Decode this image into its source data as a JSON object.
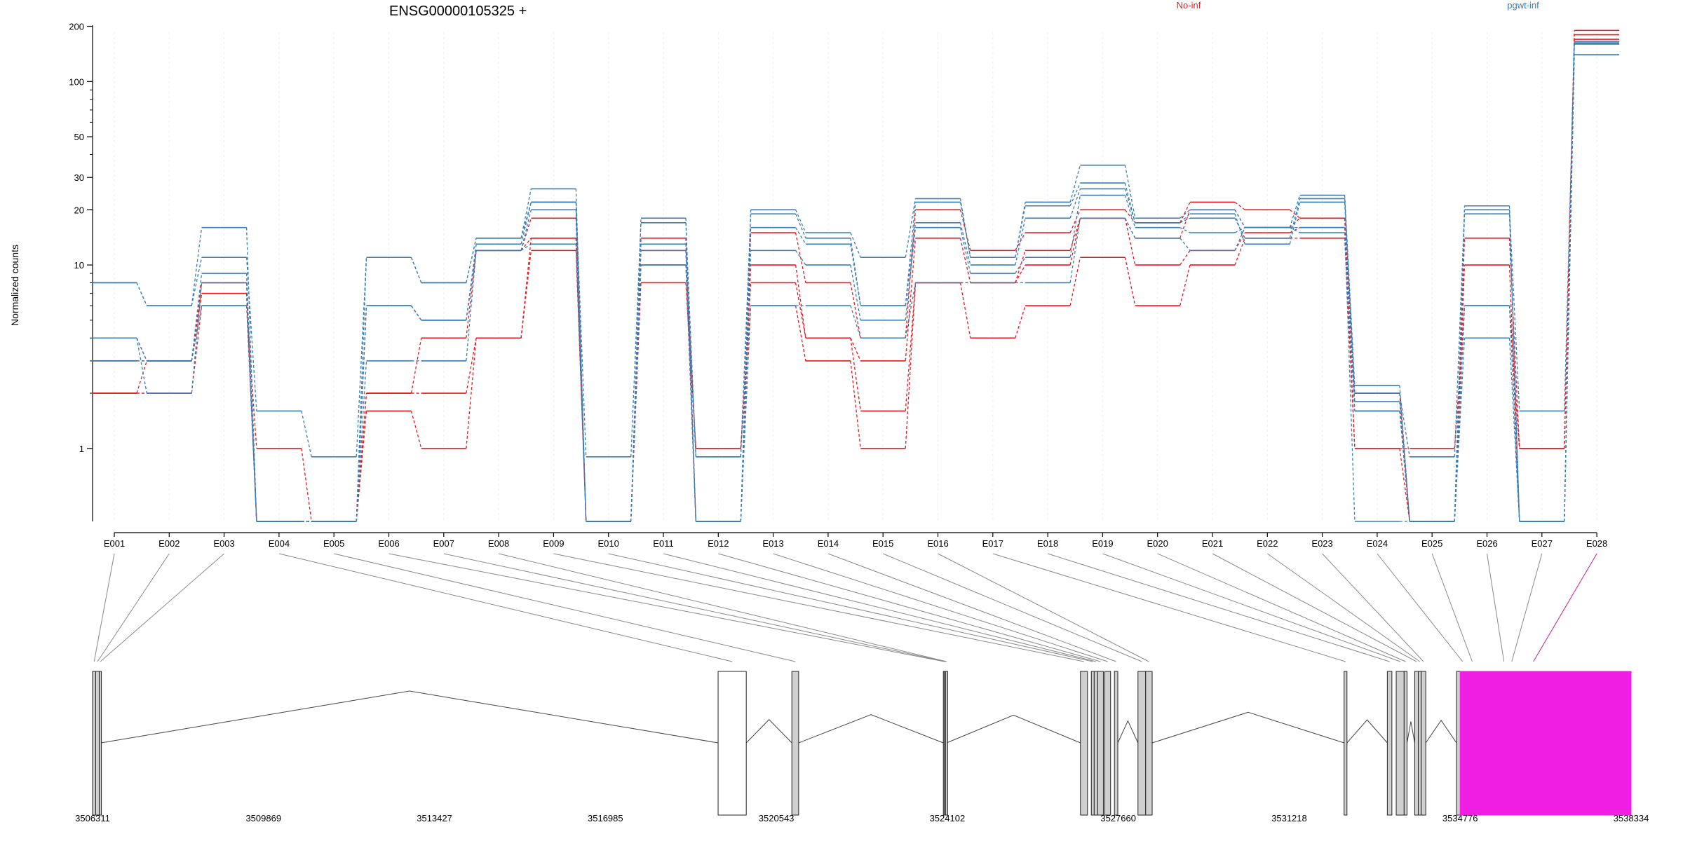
{
  "chart_data": {
    "type": "line",
    "title": "ENSG00000105325 +",
    "ylabel": "Normalized counts",
    "yscale": "log",
    "ylim": [
      0.4,
      210
    ],
    "yticks": [
      1,
      10,
      20,
      30,
      50,
      100,
      200
    ],
    "legend": {
      "placement": "top",
      "entries": [
        "No-inf",
        "pgwt-inf"
      ]
    },
    "colors": {
      "No-inf": "#e8191c",
      "pgwt-inf": "#377eb8",
      "highlight": "#f01ee3",
      "gene_box": "#d0d0d0",
      "connector": "#888888"
    },
    "categories": [
      "E001",
      "E002",
      "E003",
      "E004",
      "E005",
      "E006",
      "E007",
      "E008",
      "E009",
      "E010",
      "E011",
      "E012",
      "E013",
      "E014",
      "E015",
      "E016",
      "E017",
      "E018",
      "E019",
      "E020",
      "E021",
      "E022",
      "E023",
      "E024",
      "E025",
      "E026",
      "E027",
      "E028"
    ],
    "series": [
      {
        "group": "No-inf",
        "values": [
          2,
          2,
          6,
          1,
          0.4,
          1.6,
          1,
          4,
          12,
          0.4,
          8,
          1,
          6,
          3,
          1,
          8,
          4,
          6,
          11,
          6,
          10,
          14,
          14,
          1,
          1,
          6,
          1,
          165
        ]
      },
      {
        "group": "No-inf",
        "values": [
          2,
          3,
          7,
          0.4,
          0.4,
          2,
          2,
          4,
          14,
          0.4,
          10,
          1,
          8,
          4,
          1.6,
          8,
          8,
          10,
          18,
          10,
          12,
          15,
          16,
          1.6,
          0.4,
          6,
          1,
          170
        ]
      },
      {
        "group": "No-inf",
        "values": [
          3,
          3,
          7,
          0.4,
          0.4,
          2,
          4,
          12,
          18,
          0.4,
          12,
          0.4,
          10,
          4,
          3,
          14,
          8,
          12,
          18,
          14,
          20,
          16,
          18,
          2,
          0.4,
          10,
          0.4,
          180
        ]
      },
      {
        "group": "No-inf",
        "values": [
          4,
          3,
          8,
          0.4,
          0.4,
          6,
          5,
          12,
          14,
          0.4,
          14,
          0.4,
          15,
          8,
          4,
          20,
          12,
          15,
          20,
          17,
          22,
          20,
          18,
          1,
          0.4,
          14,
          1,
          190
        ]
      },
      {
        "group": "pgwt-inf",
        "values": [
          3,
          3,
          6,
          0.4,
          0.4,
          3,
          3,
          12,
          13,
          0.4,
          10,
          0.4,
          6,
          6,
          4,
          8,
          8,
          8,
          18,
          14,
          12,
          16,
          16,
          0.4,
          0.4,
          4,
          0.4,
          140
        ]
      },
      {
        "group": "pgwt-inf",
        "values": [
          4,
          2,
          8,
          0.4,
          0.4,
          6,
          5,
          12,
          20,
          0.4,
          12,
          0.4,
          12,
          10,
          5,
          16,
          9,
          11,
          24,
          16,
          15,
          16,
          15,
          1.6,
          0.4,
          6,
          0.4,
          160
        ]
      },
      {
        "group": "pgwt-inf",
        "values": [
          4,
          3,
          9,
          0.4,
          0.4,
          6,
          5,
          13,
          22,
          0.4,
          13,
          0.9,
          16,
          13,
          6,
          17,
          10,
          18,
          26,
          17,
          19,
          13,
          22,
          1.8,
          0.4,
          19,
          0.4,
          165
        ]
      },
      {
        "group": "pgwt-inf",
        "values": [
          8,
          6,
          11,
          1.6,
          0.9,
          11,
          8,
          14,
          22,
          0.9,
          17,
          0.9,
          19,
          14,
          6,
          22,
          11,
          21,
          28,
          17,
          18,
          14,
          23,
          2,
          0.9,
          20,
          1.6,
          165
        ]
      },
      {
        "group": "pgwt-inf",
        "values": [
          8,
          6,
          16,
          0.4,
          0.4,
          11,
          8,
          14,
          26,
          0.4,
          18,
          0.4,
          20,
          15,
          11,
          23,
          11,
          22,
          35,
          18,
          20,
          16,
          24,
          2.2,
          0.4,
          21,
          0.4,
          162
        ]
      }
    ],
    "gene_axis_ticks": [
      "3506311",
      "3509869",
      "3513427",
      "3516985",
      "3520543",
      "3524102",
      "3527660",
      "3531218",
      "3534776",
      "3538334"
    ],
    "gene_range": [
      3506311,
      3538334
    ],
    "exons": [
      {
        "id": "E001",
        "start": 3506311,
        "end": 3506376
      },
      {
        "id": "E002",
        "start": 3506376,
        "end": 3506451
      },
      {
        "id": "E003",
        "start": 3506451,
        "end": 3506486
      },
      {
        "id": "E004",
        "start": 3519331,
        "end": 3519917
      },
      {
        "id": "E005",
        "start": 3520866,
        "end": 3521007
      },
      {
        "id": "E006",
        "start": 3524019,
        "end": 3524040
      },
      {
        "id": "E007",
        "start": 3524040,
        "end": 3524065
      },
      {
        "id": "E008",
        "start": 3524065,
        "end": 3524086
      },
      {
        "id": "E009",
        "start": 3526873,
        "end": 3527019
      },
      {
        "id": "E010",
        "start": 3527099,
        "end": 3527159
      },
      {
        "id": "E011",
        "start": 3527159,
        "end": 3527230
      },
      {
        "id": "E012",
        "start": 3527230,
        "end": 3527350
      },
      {
        "id": "E013",
        "start": 3527380,
        "end": 3527500
      },
      {
        "id": "E014",
        "start": 3527580,
        "end": 3527650
      },
      {
        "id": "E015",
        "start": 3528070,
        "end": 3528230
      },
      {
        "id": "E016",
        "start": 3528230,
        "end": 3528365
      },
      {
        "id": "E017",
        "start": 3532360,
        "end": 3532420
      },
      {
        "id": "E018",
        "start": 3533260,
        "end": 3533355
      },
      {
        "id": "E019",
        "start": 3533445,
        "end": 3533610
      },
      {
        "id": "E020",
        "start": 3533610,
        "end": 3533670
      },
      {
        "id": "E021",
        "start": 3533830,
        "end": 3533905
      },
      {
        "id": "E022",
        "start": 3533905,
        "end": 3533965
      },
      {
        "id": "E023",
        "start": 3533965,
        "end": 3534060
      },
      {
        "id": "E024",
        "start": 3534700,
        "end": 3534955
      },
      {
        "id": "E025",
        "start": 3534955,
        "end": 3535100
      },
      {
        "id": "E026",
        "start": 3535610,
        "end": 3535765
      },
      {
        "id": "E027",
        "start": 3535790,
        "end": 3535910
      },
      {
        "id": "E028",
        "start": 3534776,
        "end": 3538334,
        "highlight": true
      }
    ]
  }
}
